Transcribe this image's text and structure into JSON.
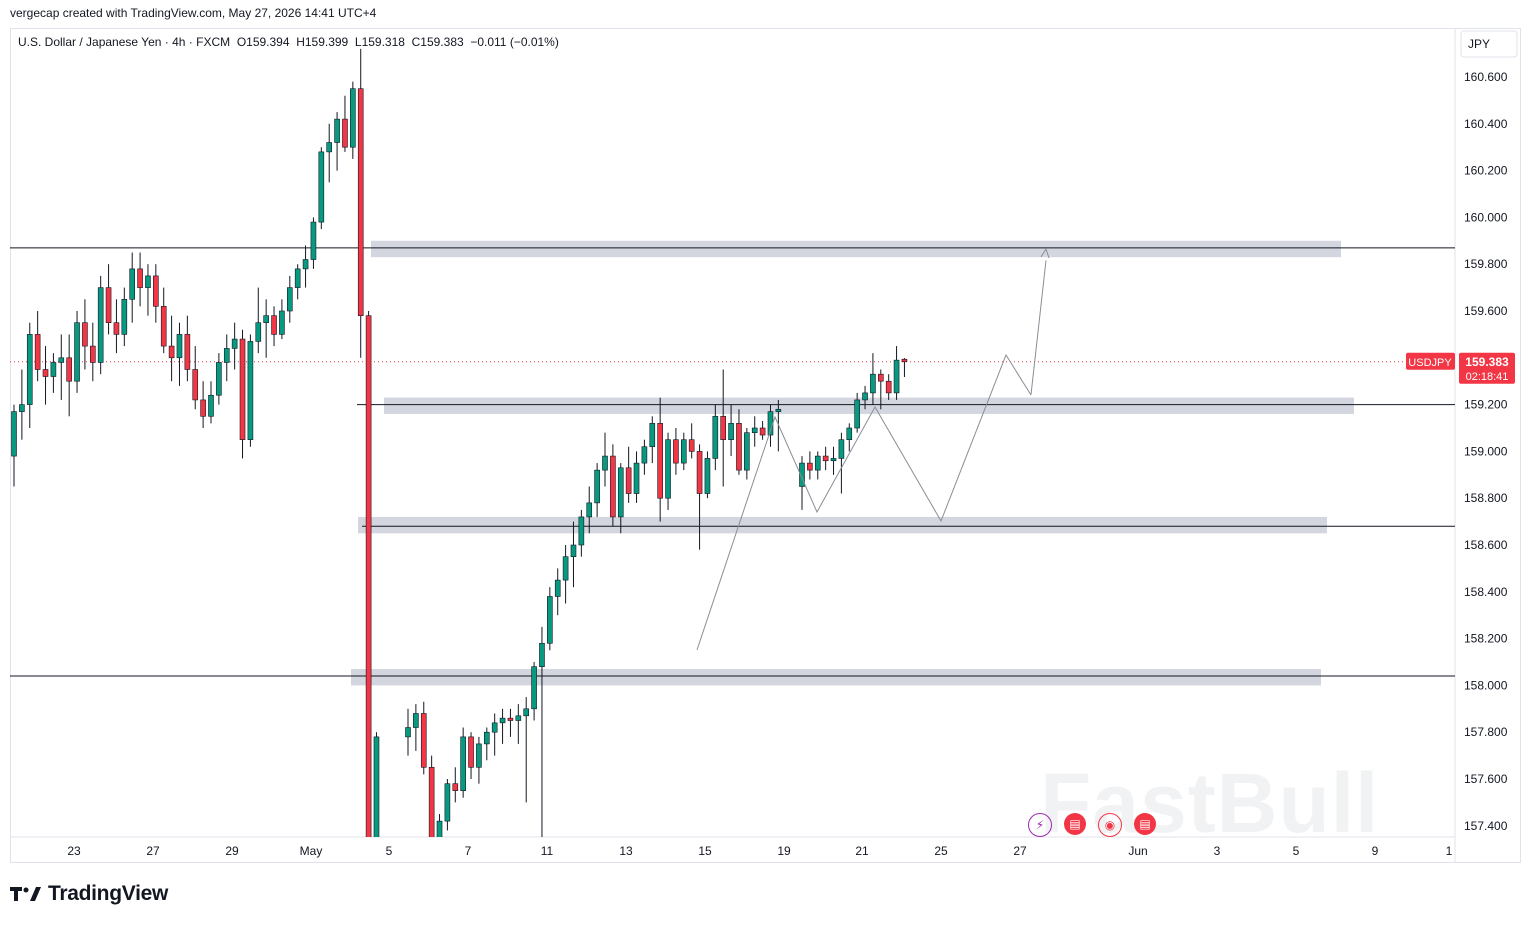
{
  "credit": "vergecap created with TradingView.com, May 27, 2026 14:41 UTC+4",
  "header": {
    "symbol": "U.S. Dollar / Japanese Yen",
    "interval": "4h",
    "exchange": "FXCM",
    "ohlc": "O159.394  H159.399  L159.318  C159.383  −0.011 (−0.01%)"
  },
  "currency_label": "JPY",
  "price_tag": {
    "symbol": "USDJPY",
    "price": "159.383",
    "countdown": "02:18:41"
  },
  "brand": "TradingView",
  "watermark": "FastBull",
  "colors": {
    "up": "#089981",
    "down": "#f23645",
    "zone": "#d1d4dc",
    "label_bg": "#f23645"
  },
  "icons": [
    "lightning-icon",
    "us-flag-icon",
    "target-icon",
    "us-flag-icon"
  ],
  "chart_data": {
    "type": "candlestick",
    "ylim": [
      157.32,
      160.73
    ],
    "y_ticks": [
      "160.600",
      "160.400",
      "160.200",
      "160.000",
      "159.800",
      "159.600",
      "159.400",
      "159.200",
      "159.000",
      "158.800",
      "158.600",
      "158.400",
      "158.200",
      "158.000",
      "157.800",
      "157.600",
      "157.400"
    ],
    "x_ticks": [
      "23",
      "27",
      "29",
      "May",
      "5",
      "7",
      "11",
      "13",
      "15",
      "19",
      "21",
      "25",
      "27",
      "Jun",
      "3",
      "5",
      "9",
      "1"
    ],
    "horizontal_lines": [
      159.87,
      159.2,
      158.68,
      158.04
    ],
    "zones": [
      {
        "low": 159.83,
        "high": 159.9
      },
      {
        "low": 159.16,
        "high": 159.23
      },
      {
        "low": 158.65,
        "high": 158.72
      },
      {
        "low": 158.0,
        "high": 158.07
      }
    ],
    "pattern_path": [
      [
        159.45,
        158.75
      ],
      [
        159.12,
        158.88
      ],
      [
        159.18,
        158.7
      ],
      [
        159.42,
        158.9
      ]
    ],
    "projection": {
      "from": 159.2,
      "to": 159.85
    },
    "last_price": 159.383,
    "candles": [
      {
        "o": 158.98,
        "h": 159.2,
        "l": 158.85,
        "c": 159.17
      },
      {
        "o": 159.17,
        "h": 159.35,
        "l": 159.05,
        "c": 159.2
      },
      {
        "o": 159.2,
        "h": 159.55,
        "l": 159.1,
        "c": 159.5
      },
      {
        "o": 159.5,
        "h": 159.6,
        "l": 159.3,
        "c": 159.35
      },
      {
        "o": 159.35,
        "h": 159.45,
        "l": 159.2,
        "c": 159.32
      },
      {
        "o": 159.32,
        "h": 159.42,
        "l": 159.25,
        "c": 159.38
      },
      {
        "o": 159.38,
        "h": 159.5,
        "l": 159.22,
        "c": 159.4
      },
      {
        "o": 159.4,
        "h": 159.5,
        "l": 159.15,
        "c": 159.3
      },
      {
        "o": 159.3,
        "h": 159.6,
        "l": 159.25,
        "c": 159.55
      },
      {
        "o": 159.55,
        "h": 159.65,
        "l": 159.35,
        "c": 159.45
      },
      {
        "o": 159.45,
        "h": 159.55,
        "l": 159.3,
        "c": 159.38
      },
      {
        "o": 159.38,
        "h": 159.75,
        "l": 159.33,
        "c": 159.7
      },
      {
        "o": 159.7,
        "h": 159.8,
        "l": 159.5,
        "c": 159.55
      },
      {
        "o": 159.55,
        "h": 159.65,
        "l": 159.42,
        "c": 159.5
      },
      {
        "o": 159.5,
        "h": 159.7,
        "l": 159.45,
        "c": 159.65
      },
      {
        "o": 159.65,
        "h": 159.85,
        "l": 159.55,
        "c": 159.78
      },
      {
        "o": 159.78,
        "h": 159.85,
        "l": 159.62,
        "c": 159.7
      },
      {
        "o": 159.7,
        "h": 159.8,
        "l": 159.58,
        "c": 159.75
      },
      {
        "o": 159.75,
        "h": 159.8,
        "l": 159.55,
        "c": 159.62
      },
      {
        "o": 159.62,
        "h": 159.7,
        "l": 159.42,
        "c": 159.45
      },
      {
        "o": 159.45,
        "h": 159.58,
        "l": 159.3,
        "c": 159.4
      },
      {
        "o": 159.4,
        "h": 159.55,
        "l": 159.28,
        "c": 159.5
      },
      {
        "o": 159.5,
        "h": 159.58,
        "l": 159.3,
        "c": 159.35
      },
      {
        "o": 159.35,
        "h": 159.45,
        "l": 159.18,
        "c": 159.22
      },
      {
        "o": 159.22,
        "h": 159.3,
        "l": 159.1,
        "c": 159.15
      },
      {
        "o": 159.15,
        "h": 159.3,
        "l": 159.12,
        "c": 159.24
      },
      {
        "o": 159.24,
        "h": 159.42,
        "l": 159.2,
        "c": 159.38
      },
      {
        "o": 159.38,
        "h": 159.5,
        "l": 159.3,
        "c": 159.44
      },
      {
        "o": 159.44,
        "h": 159.55,
        "l": 159.35,
        "c": 159.48
      },
      {
        "o": 159.48,
        "h": 159.52,
        "l": 158.97,
        "c": 159.05
      },
      {
        "o": 159.05,
        "h": 159.5,
        "l": 159.02,
        "c": 159.47
      },
      {
        "o": 159.47,
        "h": 159.7,
        "l": 159.42,
        "c": 159.55
      },
      {
        "o": 159.55,
        "h": 159.65,
        "l": 159.4,
        "c": 159.58
      },
      {
        "o": 159.58,
        "h": 159.62,
        "l": 159.45,
        "c": 159.5
      },
      {
        "o": 159.5,
        "h": 159.65,
        "l": 159.48,
        "c": 159.6
      },
      {
        "o": 159.6,
        "h": 159.75,
        "l": 159.55,
        "c": 159.7
      },
      {
        "o": 159.7,
        "h": 159.8,
        "l": 159.65,
        "c": 159.78
      },
      {
        "o": 159.78,
        "h": 159.88,
        "l": 159.7,
        "c": 159.82
      },
      {
        "o": 159.82,
        "h": 160.0,
        "l": 159.78,
        "c": 159.98
      },
      {
        "o": 159.98,
        "h": 160.3,
        "l": 159.95,
        "c": 160.28
      },
      {
        "o": 160.28,
        "h": 160.4,
        "l": 160.15,
        "c": 160.32
      },
      {
        "o": 160.32,
        "h": 160.45,
        "l": 160.2,
        "c": 160.42
      },
      {
        "o": 160.42,
        "h": 160.52,
        "l": 160.28,
        "c": 160.3
      },
      {
        "o": 160.3,
        "h": 160.58,
        "l": 160.25,
        "c": 160.55
      },
      {
        "o": 160.55,
        "h": 160.72,
        "l": 159.4,
        "c": 159.58
      },
      {
        "o": 159.58,
        "h": 159.6,
        "l": 157.35,
        "c": 157.35
      },
      {
        "o": 157.35,
        "h": 157.8,
        "l": 157.3,
        "c": 157.78
      },
      {
        "o": 157.78,
        "h": 157.9,
        "l": 157.7,
        "c": 157.82
      },
      {
        "o": 157.82,
        "h": 157.92,
        "l": 157.72,
        "c": 157.88
      },
      {
        "o": 157.88,
        "h": 157.93,
        "l": 157.62,
        "c": 157.65
      },
      {
        "o": 157.65,
        "h": 157.7,
        "l": 157.35,
        "c": 157.35
      },
      {
        "o": 157.35,
        "h": 157.45,
        "l": 157.32,
        "c": 157.42
      },
      {
        "o": 157.42,
        "h": 157.6,
        "l": 157.38,
        "c": 157.58
      },
      {
        "o": 157.58,
        "h": 157.65,
        "l": 157.5,
        "c": 157.55
      },
      {
        "o": 157.55,
        "h": 157.82,
        "l": 157.52,
        "c": 157.78
      },
      {
        "o": 157.78,
        "h": 157.8,
        "l": 157.6,
        "c": 157.65
      },
      {
        "o": 157.65,
        "h": 157.78,
        "l": 157.58,
        "c": 157.75
      },
      {
        "o": 157.75,
        "h": 157.82,
        "l": 157.68,
        "c": 157.8
      },
      {
        "o": 157.8,
        "h": 157.88,
        "l": 157.7,
        "c": 157.84
      },
      {
        "o": 157.84,
        "h": 157.9,
        "l": 157.75,
        "c": 157.86
      },
      {
        "o": 157.86,
        "h": 157.9,
        "l": 157.78,
        "c": 157.85
      },
      {
        "o": 157.85,
        "h": 157.92,
        "l": 157.75,
        "c": 157.87
      },
      {
        "o": 157.87,
        "h": 157.95,
        "l": 157.5,
        "c": 157.9
      },
      {
        "o": 157.9,
        "h": 158.1,
        "l": 157.85,
        "c": 158.08
      },
      {
        "o": 158.08,
        "h": 158.25,
        "l": 157.35,
        "c": 158.18
      },
      {
        "o": 158.18,
        "h": 158.42,
        "l": 158.15,
        "c": 158.38
      },
      {
        "o": 158.38,
        "h": 158.5,
        "l": 158.3,
        "c": 158.45
      },
      {
        "o": 158.45,
        "h": 158.6,
        "l": 158.35,
        "c": 158.55
      },
      {
        "o": 158.55,
        "h": 158.7,
        "l": 158.42,
        "c": 158.6
      },
      {
        "o": 158.6,
        "h": 158.75,
        "l": 158.55,
        "c": 158.72
      },
      {
        "o": 158.72,
        "h": 158.85,
        "l": 158.65,
        "c": 158.78
      },
      {
        "o": 158.78,
        "h": 158.95,
        "l": 158.72,
        "c": 158.92
      },
      {
        "o": 158.92,
        "h": 159.08,
        "l": 158.85,
        "c": 158.98
      },
      {
        "o": 158.98,
        "h": 159.03,
        "l": 158.68,
        "c": 158.72
      },
      {
        "o": 158.72,
        "h": 158.95,
        "l": 158.65,
        "c": 158.93
      },
      {
        "o": 158.93,
        "h": 159.02,
        "l": 158.78,
        "c": 158.82
      },
      {
        "o": 158.82,
        "h": 159.0,
        "l": 158.78,
        "c": 158.95
      },
      {
        "o": 158.95,
        "h": 159.05,
        "l": 158.9,
        "c": 159.02
      },
      {
        "o": 159.02,
        "h": 159.15,
        "l": 158.95,
        "c": 159.12
      },
      {
        "o": 159.12,
        "h": 159.23,
        "l": 158.7,
        "c": 158.8
      },
      {
        "o": 158.8,
        "h": 159.08,
        "l": 158.75,
        "c": 159.05
      },
      {
        "o": 159.05,
        "h": 159.1,
        "l": 158.9,
        "c": 158.95
      },
      {
        "o": 158.95,
        "h": 159.08,
        "l": 158.92,
        "c": 159.05
      },
      {
        "o": 159.05,
        "h": 159.12,
        "l": 158.97,
        "c": 159.0
      },
      {
        "o": 159.0,
        "h": 159.03,
        "l": 158.58,
        "c": 158.82
      },
      {
        "o": 158.82,
        "h": 159.0,
        "l": 158.8,
        "c": 158.97
      },
      {
        "o": 158.97,
        "h": 159.2,
        "l": 158.92,
        "c": 159.15
      },
      {
        "o": 159.15,
        "h": 159.35,
        "l": 158.85,
        "c": 159.05
      },
      {
        "o": 159.05,
        "h": 159.2,
        "l": 158.98,
        "c": 159.12
      },
      {
        "o": 159.12,
        "h": 159.18,
        "l": 158.9,
        "c": 158.92
      },
      {
        "o": 158.92,
        "h": 159.1,
        "l": 158.88,
        "c": 159.08
      },
      {
        "o": 159.08,
        "h": 159.15,
        "l": 159.02,
        "c": 159.1
      },
      {
        "o": 159.1,
        "h": 159.13,
        "l": 159.05,
        "c": 159.07
      },
      {
        "o": 159.07,
        "h": 159.2,
        "l": 159.02,
        "c": 159.17
      },
      {
        "o": 159.17,
        "h": 159.22,
        "l": 159.0,
        "c": 159.18
      },
      {
        "o": 158.85,
        "h": 158.98,
        "l": 158.75,
        "c": 158.95
      },
      {
        "o": 158.95,
        "h": 159.0,
        "l": 158.88,
        "c": 158.92
      },
      {
        "o": 158.92,
        "h": 159.0,
        "l": 158.88,
        "c": 158.98
      },
      {
        "o": 158.98,
        "h": 159.02,
        "l": 158.92,
        "c": 158.96
      },
      {
        "o": 158.96,
        "h": 159.02,
        "l": 158.9,
        "c": 158.97
      },
      {
        "o": 158.97,
        "h": 159.08,
        "l": 158.82,
        "c": 159.05
      },
      {
        "o": 159.05,
        "h": 159.12,
        "l": 159.0,
        "c": 159.1
      },
      {
        "o": 159.1,
        "h": 159.25,
        "l": 159.08,
        "c": 159.22
      },
      {
        "o": 159.22,
        "h": 159.28,
        "l": 159.18,
        "c": 159.25
      },
      {
        "o": 159.25,
        "h": 159.42,
        "l": 159.2,
        "c": 159.33
      },
      {
        "o": 159.33,
        "h": 159.35,
        "l": 159.18,
        "c": 159.3
      },
      {
        "o": 159.3,
        "h": 159.33,
        "l": 159.22,
        "c": 159.25
      },
      {
        "o": 159.25,
        "h": 159.45,
        "l": 159.22,
        "c": 159.39
      },
      {
        "o": 159.394,
        "h": 159.399,
        "l": 159.318,
        "c": 159.383
      }
    ]
  }
}
